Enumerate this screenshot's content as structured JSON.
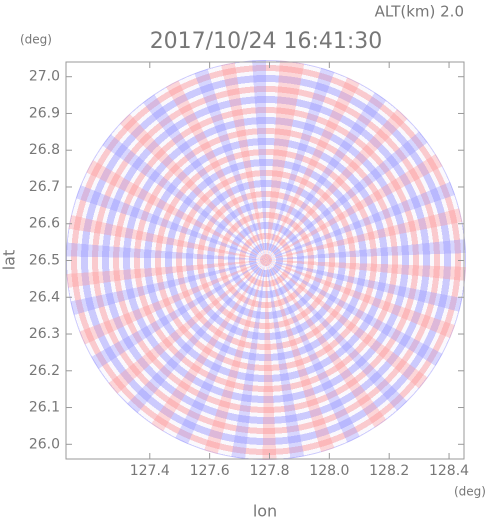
{
  "chart_data": {
    "type": "radar-image",
    "title": "2017/10/24 16:41:30",
    "subtitle": "ALT(km) 2.0",
    "x_label": "lon",
    "y_label": "lat",
    "x_unit": "(deg)",
    "y_unit": "(deg)",
    "xlim": [
      127.12,
      128.45
    ],
    "ylim": [
      25.96,
      27.04
    ],
    "xticks": [
      127.4,
      127.6,
      127.8,
      {
        "value": 128,
        "label": "128.0"
      },
      128.2,
      128.4
    ],
    "yticks": [
      {
        "value": 26,
        "label": "26.0"
      },
      26.1,
      26.2,
      26.3,
      26.4,
      26.5,
      26.6,
      26.7,
      26.8,
      26.9,
      {
        "value": 27,
        "label": "27.0"
      }
    ]
  }
}
